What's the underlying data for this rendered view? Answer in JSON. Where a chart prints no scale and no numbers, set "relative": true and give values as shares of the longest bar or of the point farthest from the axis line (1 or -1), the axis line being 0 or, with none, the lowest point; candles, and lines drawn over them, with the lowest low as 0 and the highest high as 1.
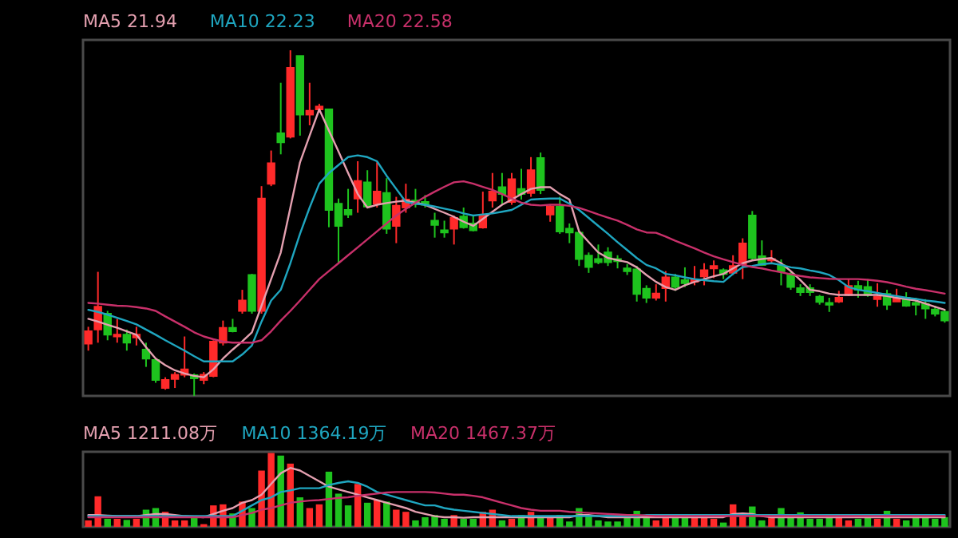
{
  "chart_data": [
    {
      "type": "candlestick",
      "relative": true,
      "categories": [
        null,
        null,
        null,
        null,
        null,
        null,
        null,
        null,
        null,
        null,
        null,
        null,
        null,
        null,
        null,
        null,
        null,
        null,
        null,
        null,
        null,
        null,
        null,
        null,
        null,
        null,
        null,
        null,
        null,
        null,
        null,
        null,
        null,
        null,
        null,
        null,
        null,
        null,
        null,
        null,
        null,
        null,
        null,
        null,
        null,
        null,
        null,
        null,
        null,
        null,
        null,
        null,
        null,
        null,
        null,
        null,
        null,
        null,
        null,
        null,
        null,
        null,
        null,
        null,
        null,
        null,
        null,
        null,
        null,
        null,
        null,
        null,
        null,
        null,
        null,
        null,
        null,
        null,
        null,
        null,
        null,
        null,
        null,
        null,
        null,
        null,
        null,
        null,
        null,
        null
      ],
      "ohlc": [
        [
          0.151,
          0.2,
          0.131,
          0.187
        ],
        [
          0.192,
          0.359,
          0.154,
          0.258
        ],
        [
          0.238,
          0.246,
          0.161,
          0.177
        ],
        [
          0.172,
          0.223,
          0.154,
          0.177
        ],
        [
          0.177,
          0.192,
          0.131,
          0.154
        ],
        [
          0.169,
          0.2,
          0.146,
          0.177
        ],
        [
          0.134,
          0.154,
          0.084,
          0.108
        ],
        [
          0.104,
          0.111,
          0.038,
          0.046
        ],
        [
          0.023,
          0.054,
          0.018,
          0.046
        ],
        [
          0.049,
          0.069,
          0.023,
          0.061
        ],
        [
          0.061,
          0.172,
          0.054,
          0.077
        ],
        [
          0.06,
          0.065,
          0,
          0.051
        ],
        [
          0.046,
          0.069,
          0.034,
          0.061
        ],
        [
          0.058,
          0.161,
          0.054,
          0.157
        ],
        [
          0.154,
          0.218,
          0.146,
          0.197
        ],
        [
          0.197,
          0.223,
          0.184,
          0.187
        ],
        [
          0.246,
          0.307,
          0.238,
          0.276
        ],
        [
          0.35,
          0.353,
          0.238,
          0.246
        ],
        [
          0.246,
          0.607,
          0.238,
          0.571
        ],
        [
          0.614,
          0.71,
          0.607,
          0.673
        ],
        [
          0.76,
          0.906,
          0.699,
          0.734
        ],
        [
          0.75,
          1,
          0.745,
          0.949
        ],
        [
          0.983,
          0.983,
          0.753,
          0.814
        ],
        [
          0.814,
          0.906,
          0.783,
          0.825
        ],
        [
          0.829,
          0.845,
          0.822,
          0.837
        ],
        [
          0.829,
          0.829,
          0.488,
          0.538
        ],
        [
          0.556,
          0.571,
          0.384,
          0.492
        ],
        [
          0.538,
          0.599,
          0.515,
          0.525
        ],
        [
          0.571,
          0.679,
          0.53,
          0.622
        ],
        [
          0.618,
          0.653,
          0.545,
          0.548
        ],
        [
          0.556,
          0.676,
          0.545,
          0.591
        ],
        [
          0.587,
          0.63,
          0.469,
          0.484
        ],
        [
          0.492,
          0.576,
          0.442,
          0.55
        ],
        [
          0.545,
          0.614,
          0.53,
          0.568
        ],
        [
          0.565,
          0.599,
          0.545,
          0.556
        ],
        [
          0.561,
          0.581,
          0.545,
          0.553
        ],
        [
          0.507,
          0.53,
          0.458,
          0.495
        ],
        [
          0.479,
          0.507,
          0.458,
          0.473
        ],
        [
          0.484,
          0.522,
          0.438,
          0.515
        ],
        [
          0.519,
          0.545,
          0.484,
          0.488
        ],
        [
          0.499,
          0.522,
          0.476,
          0.479
        ],
        [
          0.487,
          0.591,
          0.484,
          0.522
        ],
        [
          0.565,
          0.645,
          0.545,
          0.591
        ],
        [
          0.604,
          0.645,
          0.553,
          0.584
        ],
        [
          0.561,
          0.645,
          0.553,
          0.627
        ],
        [
          0.599,
          0.657,
          0.568,
          0.584
        ],
        [
          0.587,
          0.691,
          0.576,
          0.653
        ],
        [
          0.688,
          0.704,
          0.584,
          0.596
        ],
        [
          0.525,
          0.553,
          0.504,
          0.548
        ],
        [
          0.548,
          0.576,
          0.469,
          0.476
        ],
        [
          0.484,
          0.499,
          0.442,
          0.473
        ],
        [
          0.472,
          0.476,
          0.376,
          0.396
        ],
        [
          0.406,
          0.415,
          0.356,
          0.373
        ],
        [
          0.396,
          0.438,
          0.381,
          0.387
        ],
        [
          0.415,
          0.43,
          0.376,
          0.387
        ],
        [
          0.396,
          0.407,
          0.369,
          0.39
        ],
        [
          0.369,
          0.381,
          0.35,
          0.361
        ],
        [
          0.366,
          0.376,
          0.273,
          0.295
        ],
        [
          0.31,
          0.32,
          0.269,
          0.284
        ],
        [
          0.284,
          0.323,
          0.276,
          0.296
        ],
        [
          0.312,
          0.361,
          0.273,
          0.343
        ],
        [
          0.343,
          0.353,
          0.304,
          0.315
        ],
        [
          0.335,
          0.372,
          0.315,
          0.326
        ],
        [
          0.33,
          0.376,
          0.32,
          0.335
        ],
        [
          0.346,
          0.384,
          0.32,
          0.364
        ],
        [
          0.369,
          0.392,
          0.341,
          0.376
        ],
        [
          0.364,
          0.369,
          0.338,
          0.353
        ],
        [
          0.356,
          0.407,
          0.35,
          0.376
        ],
        [
          0.381,
          0.456,
          0.338,
          0.441
        ],
        [
          0.522,
          0.535,
          0.392,
          0.399
        ],
        [
          0.404,
          0.45,
          0.376,
          0.379
        ],
        [
          0.392,
          0.422,
          0.384,
          0.396
        ],
        [
          0.379,
          0.395,
          0.32,
          0.361
        ],
        [
          0.353,
          0.361,
          0.307,
          0.315
        ],
        [
          0.312,
          0.323,
          0.289,
          0.3
        ],
        [
          0.312,
          0.323,
          0.289,
          0.3
        ],
        [
          0.287,
          0.292,
          0.264,
          0.272
        ],
        [
          0.269,
          0.284,
          0.243,
          0.264
        ],
        [
          0.273,
          0.304,
          0.269,
          0.284
        ],
        [
          0.292,
          0.338,
          0.289,
          0.318
        ],
        [
          0.318,
          0.333,
          0.284,
          0.307
        ],
        [
          0.315,
          0.338,
          0.287,
          0.292
        ],
        [
          0.28,
          0.326,
          0.258,
          0.287
        ],
        [
          0.295,
          0.307,
          0.249,
          0.264
        ],
        [
          0.273,
          0.31,
          0.273,
          0.283
        ],
        [
          0.284,
          0.3,
          0.258,
          0.261
        ],
        [
          0.269,
          0.284,
          0.233,
          0.264
        ],
        [
          0.266,
          0.28,
          0.223,
          0.253
        ],
        [
          0.25,
          0.261,
          0.23,
          0.238
        ],
        [
          0.243,
          0.249,
          0.212,
          0.218
        ]
      ],
      "colors": [
        "#ff2a2a",
        "#ff2a2a",
        "#1ec31e",
        "#ff2a2a",
        "#1ec31e",
        "#ff2a2a",
        "#1ec31e",
        "#1ec31e",
        "#ff2a2a",
        "#ff2a2a",
        "#ff2a2a",
        "#1ec31e",
        "#ff2a2a",
        "#ff2a2a",
        "#ff2a2a",
        "#1ec31e",
        "#ff2a2a",
        "#1ec31e",
        "#ff2a2a",
        "#ff2a2a",
        "#1ec31e",
        "#ff2a2a",
        "#1ec31e",
        "#ff2a2a",
        "#ff2a2a",
        "#1ec31e",
        "#1ec31e",
        "#1ec31e",
        "#ff2a2a",
        "#1ec31e",
        "#ff2a2a",
        "#1ec31e",
        "#ff2a2a",
        "#ff2a2a",
        "#1ec31e",
        "#1ec31e",
        "#1ec31e",
        "#1ec31e",
        "#ff2a2a",
        "#1ec31e",
        "#1ec31e",
        "#ff2a2a",
        "#ff2a2a",
        "#1ec31e",
        "#ff2a2a",
        "#1ec31e",
        "#ff2a2a",
        "#1ec31e",
        "#ff2a2a",
        "#1ec31e",
        "#1ec31e",
        "#1ec31e",
        "#1ec31e",
        "#1ec31e",
        "#1ec31e",
        "#1ec31e",
        "#1ec31e",
        "#1ec31e",
        "#1ec31e",
        "#ff2a2a",
        "#ff2a2a",
        "#1ec31e",
        "#1ec31e",
        "#ff2a2a",
        "#ff2a2a",
        "#ff2a2a",
        "#1ec31e",
        "#ff2a2a",
        "#ff2a2a",
        "#1ec31e",
        "#1ec31e",
        "#ff2a2a",
        "#1ec31e",
        "#1ec31e",
        "#1ec31e",
        "#1ec31e",
        "#1ec31e",
        "#1ec31e",
        "#ff2a2a",
        "#ff2a2a",
        "#1ec31e",
        "#1ec31e",
        "#ff2a2a",
        "#1ec31e",
        "#ff2a2a",
        "#1ec31e",
        "#1ec31e",
        "#1ec31e",
        "#1ec31e",
        "#1ec31e"
      ],
      "series": [
        {
          "name": "MA5 21.94",
          "type": "line",
          "color": "#e4a0b0",
          "values": [
            0.223,
            0.215,
            0.206,
            0.197,
            0.187,
            0.177,
            0.141,
            0.108,
            0.089,
            0.074,
            0.065,
            0.058,
            0.054,
            0.077,
            0.108,
            0.134,
            0.158,
            0.184,
            0.261,
            0.338,
            0.415,
            0.545,
            0.676,
            0.753,
            0.829,
            0.768,
            0.707,
            0.645,
            0.584,
            0.545,
            0.553,
            0.558,
            0.562,
            0.565,
            0.559,
            0.553,
            0.541,
            0.53,
            0.518,
            0.504,
            0.492,
            0.512,
            0.533,
            0.553,
            0.568,
            0.584,
            0.599,
            0.604,
            0.604,
            0.584,
            0.568,
            0.476,
            0.445,
            0.415,
            0.399,
            0.393,
            0.387,
            0.372,
            0.35,
            0.33,
            0.315,
            0.307,
            0.32,
            0.33,
            0.338,
            0.346,
            0.353,
            0.369,
            0.384,
            0.392,
            0.396,
            0.399,
            0.384,
            0.361,
            0.335,
            0.307,
            0.303,
            0.296,
            0.292,
            0.292,
            0.292,
            0.292,
            0.292,
            0.289,
            0.284,
            0.28,
            0.276,
            0.267,
            0.258,
            0.249
          ]
        },
        {
          "name": "MA10 22.23",
          "type": "line",
          "color": "#1fa6c0",
          "values": [
            0.249,
            0.243,
            0.235,
            0.226,
            0.217,
            0.207,
            0.192,
            0.177,
            0.161,
            0.146,
            0.131,
            0.115,
            0.1,
            0.1,
            0.1,
            0.1,
            0.12,
            0.146,
            0.215,
            0.276,
            0.307,
            0.384,
            0.469,
            0.545,
            0.614,
            0.645,
            0.668,
            0.691,
            0.696,
            0.691,
            0.679,
            0.637,
            0.599,
            0.561,
            0.556,
            0.553,
            0.548,
            0.542,
            0.536,
            0.528,
            0.522,
            0.525,
            0.528,
            0.533,
            0.538,
            0.553,
            0.568,
            0.57,
            0.571,
            0.571,
            0.556,
            0.538,
            0.515,
            0.492,
            0.469,
            0.445,
            0.422,
            0.399,
            0.379,
            0.369,
            0.353,
            0.349,
            0.343,
            0.338,
            0.335,
            0.332,
            0.33,
            0.353,
            0.373,
            0.376,
            0.381,
            0.384,
            0.379,
            0.372,
            0.369,
            0.363,
            0.358,
            0.35,
            0.335,
            0.315,
            0.307,
            0.303,
            0.298,
            0.293,
            0.289,
            0.284,
            0.281,
            0.276,
            0.273,
            0.269
          ]
        },
        {
          "name": "MA20 22.58",
          "type": "line",
          "color": "#c8306a",
          "values": [
            0.269,
            0.267,
            0.264,
            0.261,
            0.26,
            0.257,
            0.253,
            0.246,
            0.23,
            0.215,
            0.2,
            0.184,
            0.172,
            0.164,
            0.157,
            0.154,
            0.154,
            0.154,
            0.161,
            0.187,
            0.218,
            0.246,
            0.276,
            0.307,
            0.338,
            0.361,
            0.384,
            0.407,
            0.43,
            0.453,
            0.476,
            0.499,
            0.522,
            0.541,
            0.559,
            0.576,
            0.591,
            0.605,
            0.618,
            0.621,
            0.614,
            0.605,
            0.596,
            0.584,
            0.571,
            0.559,
            0.553,
            0.551,
            0.553,
            0.553,
            0.55,
            0.544,
            0.535,
            0.525,
            0.516,
            0.507,
            0.495,
            0.482,
            0.473,
            0.472,
            0.461,
            0.449,
            0.438,
            0.427,
            0.415,
            0.404,
            0.395,
            0.387,
            0.379,
            0.373,
            0.369,
            0.363,
            0.358,
            0.352,
            0.347,
            0.343,
            0.341,
            0.339,
            0.338,
            0.338,
            0.338,
            0.336,
            0.333,
            0.329,
            0.323,
            0.316,
            0.31,
            0.306,
            0.301,
            0.296
          ]
        }
      ]
    },
    {
      "type": "bar",
      "relative": true,
      "categories": [
        null,
        null,
        null,
        null,
        null,
        null,
        null,
        null,
        null,
        null,
        null,
        null,
        null,
        null,
        null,
        null,
        null,
        null,
        null,
        null,
        null,
        null,
        null,
        null,
        null,
        null,
        null,
        null,
        null,
        null,
        null,
        null,
        null,
        null,
        null,
        null,
        null,
        null,
        null,
        null,
        null,
        null,
        null,
        null,
        null,
        null,
        null,
        null,
        null,
        null,
        null,
        null,
        null,
        null,
        null,
        null,
        null,
        null,
        null,
        null,
        null,
        null,
        null,
        null,
        null,
        null,
        null,
        null,
        null,
        null,
        null,
        null,
        null,
        null,
        null,
        null,
        null,
        null,
        null,
        null,
        null,
        null,
        null,
        null,
        null,
        null,
        null,
        null,
        null,
        null
      ],
      "values": [
        0.087,
        0.413,
        0.109,
        0.109,
        0.094,
        0.109,
        0.232,
        0.254,
        0.203,
        0.087,
        0.087,
        0.13,
        0.036,
        0.29,
        0.304,
        0.181,
        0.341,
        0.254,
        0.761,
        1,
        0.964,
        0.855,
        0.399,
        0.254,
        0.304,
        0.746,
        0.449,
        0.29,
        0.58,
        0.326,
        0.362,
        0.341,
        0.232,
        0.203,
        0.087,
        0.13,
        0.159,
        0.109,
        0.159,
        0.109,
        0.109,
        0.203,
        0.232,
        0.087,
        0.109,
        0.159,
        0.203,
        0.145,
        0.13,
        0.159,
        0.072,
        0.254,
        0.145,
        0.087,
        0.072,
        0.072,
        0.13,
        0.217,
        0.123,
        0.087,
        0.13,
        0.13,
        0.13,
        0.13,
        0.13,
        0.109,
        0.058,
        0.304,
        0.145,
        0.275,
        0.087,
        0.13,
        0.254,
        0.145,
        0.196,
        0.109,
        0.109,
        0.13,
        0.13,
        0.087,
        0.109,
        0.13,
        0.109,
        0.217,
        0.109,
        0.087,
        0.13,
        0.13,
        0.109,
        0.13
      ],
      "colors": [
        "#ff2a2a",
        "#ff2a2a",
        "#1ec31e",
        "#ff2a2a",
        "#1ec31e",
        "#ff2a2a",
        "#1ec31e",
        "#1ec31e",
        "#ff2a2a",
        "#ff2a2a",
        "#ff2a2a",
        "#1ec31e",
        "#ff2a2a",
        "#ff2a2a",
        "#ff2a2a",
        "#1ec31e",
        "#ff2a2a",
        "#1ec31e",
        "#ff2a2a",
        "#ff2a2a",
        "#1ec31e",
        "#ff2a2a",
        "#1ec31e",
        "#ff2a2a",
        "#ff2a2a",
        "#1ec31e",
        "#1ec31e",
        "#1ec31e",
        "#ff2a2a",
        "#1ec31e",
        "#ff2a2a",
        "#1ec31e",
        "#ff2a2a",
        "#ff2a2a",
        "#1ec31e",
        "#1ec31e",
        "#1ec31e",
        "#1ec31e",
        "#ff2a2a",
        "#1ec31e",
        "#1ec31e",
        "#ff2a2a",
        "#ff2a2a",
        "#1ec31e",
        "#ff2a2a",
        "#1ec31e",
        "#ff2a2a",
        "#1ec31e",
        "#ff2a2a",
        "#1ec31e",
        "#1ec31e",
        "#1ec31e",
        "#1ec31e",
        "#1ec31e",
        "#1ec31e",
        "#1ec31e",
        "#1ec31e",
        "#1ec31e",
        "#1ec31e",
        "#ff2a2a",
        "#ff2a2a",
        "#1ec31e",
        "#1ec31e",
        "#ff2a2a",
        "#ff2a2a",
        "#ff2a2a",
        "#1ec31e",
        "#ff2a2a",
        "#ff2a2a",
        "#1ec31e",
        "#1ec31e",
        "#ff2a2a",
        "#1ec31e",
        "#1ec31e",
        "#1ec31e",
        "#1ec31e",
        "#1ec31e",
        "#1ec31e",
        "#ff2a2a",
        "#ff2a2a",
        "#1ec31e",
        "#1ec31e",
        "#ff2a2a",
        "#1ec31e",
        "#ff2a2a",
        "#1ec31e",
        "#1ec31e",
        "#1ec31e",
        "#1ec31e",
        "#1ec31e"
      ],
      "series": [
        {
          "name": "MA5 1211.08万",
          "type": "line",
          "color": "#e4a0b0",
          "values": [
            0.159,
            0.159,
            0.152,
            0.145,
            0.145,
            0.145,
            0.159,
            0.174,
            0.174,
            0.159,
            0.145,
            0.138,
            0.13,
            0.174,
            0.217,
            0.254,
            0.326,
            0.362,
            0.435,
            0.58,
            0.725,
            0.797,
            0.761,
            0.688,
            0.616,
            0.543,
            0.507,
            0.471,
            0.435,
            0.399,
            0.362,
            0.326,
            0.29,
            0.254,
            0.203,
            0.174,
            0.145,
            0.13,
            0.13,
            0.123,
            0.13,
            0.13,
            0.13,
            0.13,
            0.13,
            0.13,
            0.13,
            0.13,
            0.13,
            0.13,
            0.13,
            0.159,
            0.159,
            0.145,
            0.13,
            0.13,
            0.13,
            0.13,
            0.13,
            0.13,
            0.13,
            0.13,
            0.13,
            0.13,
            0.13,
            0.13,
            0.13,
            0.174,
            0.181,
            0.174,
            0.145,
            0.13,
            0.13,
            0.13,
            0.13,
            0.13,
            0.13,
            0.13,
            0.13,
            0.13,
            0.13,
            0.13,
            0.13,
            0.13,
            0.13,
            0.13,
            0.13,
            0.13,
            0.13,
            0.13
          ]
        },
        {
          "name": "MA10 1364.19万",
          "type": "line",
          "color": "#1fa6c0",
          "values": [
            0.145,
            0.145,
            0.145,
            0.145,
            0.145,
            0.145,
            0.145,
            0.145,
            0.145,
            0.145,
            0.145,
            0.145,
            0.145,
            0.145,
            0.145,
            0.145,
            0.217,
            0.29,
            0.362,
            0.399,
            0.471,
            0.493,
            0.522,
            0.522,
            0.522,
            0.565,
            0.594,
            0.616,
            0.594,
            0.543,
            0.471,
            0.435,
            0.399,
            0.362,
            0.326,
            0.29,
            0.29,
            0.254,
            0.232,
            0.217,
            0.203,
            0.188,
            0.174,
            0.159,
            0.145,
            0.145,
            0.145,
            0.145,
            0.145,
            0.145,
            0.145,
            0.145,
            0.145,
            0.145,
            0.145,
            0.145,
            0.145,
            0.145,
            0.159,
            0.159,
            0.159,
            0.159,
            0.159,
            0.159,
            0.159,
            0.159,
            0.159,
            0.159,
            0.159,
            0.159,
            0.159,
            0.159,
            0.159,
            0.159,
            0.159,
            0.159,
            0.159,
            0.159,
            0.159,
            0.159,
            0.159,
            0.159,
            0.159,
            0.159,
            0.159,
            0.159,
            0.159,
            0.159,
            0.159,
            0.159
          ]
        },
        {
          "name": "MA20 1467.37万",
          "type": "line",
          "color": "#c8306a",
          "values": [
            0.13,
            0.13,
            0.13,
            0.13,
            0.13,
            0.13,
            0.13,
            0.13,
            0.13,
            0.13,
            0.13,
            0.13,
            0.13,
            0.13,
            0.13,
            0.13,
            0.159,
            0.188,
            0.232,
            0.254,
            0.29,
            0.326,
            0.341,
            0.355,
            0.362,
            0.377,
            0.391,
            0.399,
            0.42,
            0.435,
            0.449,
            0.464,
            0.471,
            0.471,
            0.471,
            0.471,
            0.464,
            0.449,
            0.435,
            0.435,
            0.42,
            0.399,
            0.362,
            0.326,
            0.29,
            0.254,
            0.232,
            0.217,
            0.217,
            0.217,
            0.203,
            0.196,
            0.188,
            0.181,
            0.174,
            0.167,
            0.159,
            0.159,
            0.152,
            0.145,
            0.145,
            0.145,
            0.145,
            0.145,
            0.145,
            0.145,
            0.145,
            0.145,
            0.145,
            0.145,
            0.145,
            0.145,
            0.145,
            0.145,
            0.145,
            0.145,
            0.145,
            0.145,
            0.145,
            0.145,
            0.145,
            0.145,
            0.145,
            0.145,
            0.145,
            0.145,
            0.145,
            0.145,
            0.145,
            0.145
          ]
        }
      ]
    }
  ]
}
